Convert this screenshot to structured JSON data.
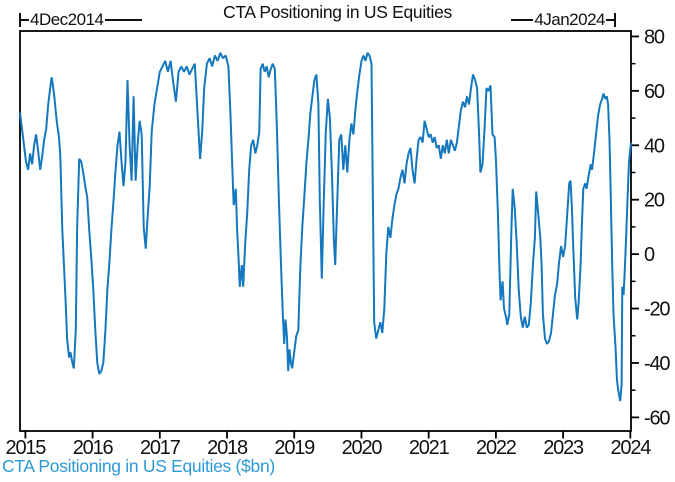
{
  "header": {
    "start_label": "4Dec2014",
    "end_label": "4Jan2024",
    "title": "CTA Positioning in US Equities"
  },
  "footer": {
    "legend_label": "CTA Positioning in US Equities ($bn)"
  },
  "colors": {
    "line": "#1578BE",
    "legend_text": "#2D9AD5",
    "axis": "#000000",
    "text": "#111111"
  },
  "chart_data": {
    "type": "line",
    "title": "CTA Positioning in US Equities",
    "series_name": "CTA Positioning in US Equities ($bn)",
    "xlabel": "",
    "ylabel": "",
    "grid": false,
    "legend_position": "bottom-left",
    "y_axis_side": "right",
    "xlim": [
      2014.92,
      2024.01
    ],
    "ylim": [
      -65,
      82
    ],
    "x_ticks": [
      2015,
      2016,
      2017,
      2018,
      2019,
      2020,
      2021,
      2022,
      2023,
      2024
    ],
    "y_ticks": [
      -60,
      -40,
      -20,
      0,
      20,
      40,
      60,
      80
    ],
    "y_minor_ticks": [
      -50,
      -30,
      -10,
      10,
      30,
      50,
      70
    ],
    "points": [
      [
        2014.92,
        52
      ],
      [
        2014.95,
        46
      ],
      [
        2014.98,
        40
      ],
      [
        2015.01,
        34
      ],
      [
        2015.04,
        31
      ],
      [
        2015.07,
        37
      ],
      [
        2015.1,
        33
      ],
      [
        2015.13,
        40
      ],
      [
        2015.16,
        44
      ],
      [
        2015.19,
        38
      ],
      [
        2015.22,
        31
      ],
      [
        2015.25,
        36
      ],
      [
        2015.28,
        42
      ],
      [
        2015.31,
        46
      ],
      [
        2015.34,
        55
      ],
      [
        2015.37,
        61
      ],
      [
        2015.39,
        65
      ],
      [
        2015.41,
        62
      ],
      [
        2015.43,
        58
      ],
      [
        2015.45,
        53
      ],
      [
        2015.47,
        48
      ],
      [
        2015.5,
        43
      ],
      [
        2015.52,
        36
      ],
      [
        2015.55,
        9
      ],
      [
        2015.57,
        -2
      ],
      [
        2015.6,
        -18
      ],
      [
        2015.62,
        -31
      ],
      [
        2015.65,
        -38
      ],
      [
        2015.67,
        -36
      ],
      [
        2015.7,
        -40
      ],
      [
        2015.72,
        -42
      ],
      [
        2015.75,
        -28
      ],
      [
        2015.77,
        9
      ],
      [
        2015.8,
        35
      ],
      [
        2015.83,
        34
      ],
      [
        2015.86,
        30
      ],
      [
        2015.89,
        25
      ],
      [
        2015.92,
        21
      ],
      [
        2015.95,
        9
      ],
      [
        2015.98,
        -1
      ],
      [
        2016.01,
        -13
      ],
      [
        2016.04,
        -28
      ],
      [
        2016.07,
        -40
      ],
      [
        2016.1,
        -44
      ],
      [
        2016.13,
        -43
      ],
      [
        2016.16,
        -40
      ],
      [
        2016.19,
        -28
      ],
      [
        2016.22,
        -13
      ],
      [
        2016.25,
        -3
      ],
      [
        2016.28,
        9
      ],
      [
        2016.31,
        19
      ],
      [
        2016.34,
        30
      ],
      [
        2016.37,
        40
      ],
      [
        2016.4,
        45
      ],
      [
        2016.43,
        34
      ],
      [
        2016.46,
        25
      ],
      [
        2016.49,
        34
      ],
      [
        2016.52,
        64
      ],
      [
        2016.55,
        40
      ],
      [
        2016.58,
        27
      ],
      [
        2016.61,
        58
      ],
      [
        2016.64,
        27
      ],
      [
        2016.67,
        40
      ],
      [
        2016.7,
        49
      ],
      [
        2016.73,
        44
      ],
      [
        2016.76,
        10
      ],
      [
        2016.79,
        2
      ],
      [
        2016.82,
        14
      ],
      [
        2016.85,
        25
      ],
      [
        2016.88,
        45
      ],
      [
        2016.92,
        55
      ],
      [
        2016.96,
        61
      ],
      [
        2017.0,
        67
      ],
      [
        2017.04,
        69
      ],
      [
        2017.08,
        71
      ],
      [
        2017.12,
        67
      ],
      [
        2017.16,
        71
      ],
      [
        2017.2,
        63
      ],
      [
        2017.24,
        56
      ],
      [
        2017.28,
        67
      ],
      [
        2017.32,
        69
      ],
      [
        2017.36,
        67
      ],
      [
        2017.4,
        69
      ],
      [
        2017.44,
        66
      ],
      [
        2017.48,
        68
      ],
      [
        2017.52,
        70
      ],
      [
        2017.56,
        52
      ],
      [
        2017.6,
        35
      ],
      [
        2017.63,
        45
      ],
      [
        2017.66,
        61
      ],
      [
        2017.7,
        70
      ],
      [
        2017.74,
        72
      ],
      [
        2017.78,
        69
      ],
      [
        2017.82,
        73
      ],
      [
        2017.86,
        71
      ],
      [
        2017.9,
        74
      ],
      [
        2017.94,
        72
      ],
      [
        2017.98,
        73
      ],
      [
        2018.02,
        69
      ],
      [
        2018.05,
        52
      ],
      [
        2018.08,
        31
      ],
      [
        2018.1,
        18
      ],
      [
        2018.13,
        24
      ],
      [
        2018.15,
        9
      ],
      [
        2018.17,
        -1
      ],
      [
        2018.19,
        -12
      ],
      [
        2018.22,
        -4
      ],
      [
        2018.24,
        -12
      ],
      [
        2018.27,
        4
      ],
      [
        2018.3,
        15
      ],
      [
        2018.33,
        31
      ],
      [
        2018.36,
        40
      ],
      [
        2018.39,
        42
      ],
      [
        2018.42,
        37
      ],
      [
        2018.45,
        40
      ],
      [
        2018.48,
        45
      ],
      [
        2018.5,
        68
      ],
      [
        2018.53,
        70
      ],
      [
        2018.56,
        67
      ],
      [
        2018.59,
        69
      ],
      [
        2018.62,
        65
      ],
      [
        2018.65,
        68
      ],
      [
        2018.68,
        70
      ],
      [
        2018.71,
        68
      ],
      [
        2018.73,
        55
      ],
      [
        2018.75,
        40
      ],
      [
        2018.77,
        21
      ],
      [
        2018.79,
        6
      ],
      [
        2018.81,
        -9
      ],
      [
        2018.83,
        -22
      ],
      [
        2018.85,
        -33
      ],
      [
        2018.87,
        -24
      ],
      [
        2018.89,
        -30
      ],
      [
        2018.91,
        -43
      ],
      [
        2018.93,
        -35
      ],
      [
        2018.95,
        -40
      ],
      [
        2018.97,
        -42
      ],
      [
        2019.0,
        -36
      ],
      [
        2019.03,
        -30
      ],
      [
        2019.06,
        -28
      ],
      [
        2019.09,
        -5
      ],
      [
        2019.12,
        10
      ],
      [
        2019.15,
        21
      ],
      [
        2019.18,
        33
      ],
      [
        2019.21,
        42
      ],
      [
        2019.24,
        52
      ],
      [
        2019.27,
        58
      ],
      [
        2019.3,
        64
      ],
      [
        2019.33,
        66
      ],
      [
        2019.36,
        55
      ],
      [
        2019.38,
        20
      ],
      [
        2019.41,
        -9
      ],
      [
        2019.44,
        20
      ],
      [
        2019.47,
        45
      ],
      [
        2019.5,
        57
      ],
      [
        2019.53,
        50
      ],
      [
        2019.56,
        30
      ],
      [
        2019.59,
        5
      ],
      [
        2019.61,
        -4
      ],
      [
        2019.64,
        20
      ],
      [
        2019.67,
        42
      ],
      [
        2019.7,
        44
      ],
      [
        2019.73,
        31
      ],
      [
        2019.76,
        40
      ],
      [
        2019.79,
        30
      ],
      [
        2019.82,
        42
      ],
      [
        2019.85,
        48
      ],
      [
        2019.88,
        44
      ],
      [
        2019.91,
        53
      ],
      [
        2019.94,
        60
      ],
      [
        2019.97,
        66
      ],
      [
        2020.0,
        71
      ],
      [
        2020.03,
        73
      ],
      [
        2020.06,
        71
      ],
      [
        2020.09,
        74
      ],
      [
        2020.12,
        73
      ],
      [
        2020.15,
        70
      ],
      [
        2020.17,
        20
      ],
      [
        2020.19,
        -25
      ],
      [
        2020.22,
        -31
      ],
      [
        2020.25,
        -28
      ],
      [
        2020.28,
        -25
      ],
      [
        2020.31,
        -29
      ],
      [
        2020.34,
        -20
      ],
      [
        2020.37,
        0
      ],
      [
        2020.4,
        10
      ],
      [
        2020.43,
        6
      ],
      [
        2020.46,
        13
      ],
      [
        2020.49,
        18
      ],
      [
        2020.52,
        22
      ],
      [
        2020.55,
        24
      ],
      [
        2020.58,
        28
      ],
      [
        2020.61,
        31
      ],
      [
        2020.64,
        26
      ],
      [
        2020.67,
        33
      ],
      [
        2020.7,
        37
      ],
      [
        2020.73,
        39
      ],
      [
        2020.76,
        31
      ],
      [
        2020.79,
        26
      ],
      [
        2020.82,
        35
      ],
      [
        2020.85,
        42
      ],
      [
        2020.88,
        43
      ],
      [
        2020.91,
        41
      ],
      [
        2020.94,
        49
      ],
      [
        2020.97,
        46
      ],
      [
        2021.0,
        43
      ],
      [
        2021.03,
        44
      ],
      [
        2021.06,
        41
      ],
      [
        2021.09,
        43
      ],
      [
        2021.12,
        39
      ],
      [
        2021.15,
        40
      ],
      [
        2021.18,
        35
      ],
      [
        2021.21,
        40
      ],
      [
        2021.24,
        37
      ],
      [
        2021.27,
        42
      ],
      [
        2021.3,
        37
      ],
      [
        2021.33,
        42
      ],
      [
        2021.36,
        40
      ],
      [
        2021.39,
        38
      ],
      [
        2021.42,
        41
      ],
      [
        2021.45,
        47
      ],
      [
        2021.48,
        53
      ],
      [
        2021.51,
        56
      ],
      [
        2021.54,
        54
      ],
      [
        2021.57,
        58
      ],
      [
        2021.6,
        55
      ],
      [
        2021.63,
        61
      ],
      [
        2021.66,
        66
      ],
      [
        2021.69,
        64
      ],
      [
        2021.72,
        61
      ],
      [
        2021.75,
        44
      ],
      [
        2021.77,
        30
      ],
      [
        2021.8,
        33
      ],
      [
        2021.83,
        46
      ],
      [
        2021.86,
        61
      ],
      [
        2021.89,
        60
      ],
      [
        2021.92,
        62
      ],
      [
        2021.95,
        44
      ],
      [
        2021.98,
        43
      ],
      [
        2022.0,
        35
      ],
      [
        2022.03,
        15
      ],
      [
        2022.05,
        -4
      ],
      [
        2022.07,
        -17
      ],
      [
        2022.1,
        -10
      ],
      [
        2022.12,
        -20
      ],
      [
        2022.15,
        -23
      ],
      [
        2022.17,
        -26
      ],
      [
        2022.2,
        -22
      ],
      [
        2022.23,
        9
      ],
      [
        2022.25,
        24
      ],
      [
        2022.28,
        17
      ],
      [
        2022.31,
        4
      ],
      [
        2022.34,
        -13
      ],
      [
        2022.37,
        -23
      ],
      [
        2022.4,
        -27
      ],
      [
        2022.43,
        -23
      ],
      [
        2022.46,
        -27
      ],
      [
        2022.49,
        -26
      ],
      [
        2022.52,
        -18
      ],
      [
        2022.55,
        -4
      ],
      [
        2022.58,
        6
      ],
      [
        2022.6,
        23
      ],
      [
        2022.63,
        15
      ],
      [
        2022.66,
        6
      ],
      [
        2022.68,
        -4
      ],
      [
        2022.7,
        -22
      ],
      [
        2022.73,
        -31
      ],
      [
        2022.76,
        -33
      ],
      [
        2022.79,
        -32
      ],
      [
        2022.82,
        -29
      ],
      [
        2022.85,
        -22
      ],
      [
        2022.88,
        -15
      ],
      [
        2022.91,
        -11
      ],
      [
        2022.94,
        -3
      ],
      [
        2022.97,
        3
      ],
      [
        2023.0,
        -1
      ],
      [
        2023.03,
        3
      ],
      [
        2023.06,
        14
      ],
      [
        2023.09,
        26
      ],
      [
        2023.11,
        27
      ],
      [
        2023.13,
        18
      ],
      [
        2023.15,
        3
      ],
      [
        2023.18,
        -16
      ],
      [
        2023.21,
        -24
      ],
      [
        2023.23,
        -18
      ],
      [
        2023.26,
        -4
      ],
      [
        2023.28,
        11
      ],
      [
        2023.3,
        24
      ],
      [
        2023.33,
        26
      ],
      [
        2023.35,
        24
      ],
      [
        2023.38,
        29
      ],
      [
        2023.41,
        33
      ],
      [
        2023.43,
        31
      ],
      [
        2023.46,
        37
      ],
      [
        2023.49,
        44
      ],
      [
        2023.52,
        51
      ],
      [
        2023.55,
        55
      ],
      [
        2023.58,
        57
      ],
      [
        2023.6,
        59
      ],
      [
        2023.63,
        57
      ],
      [
        2023.65,
        58
      ],
      [
        2023.67,
        55
      ],
      [
        2023.69,
        42
      ],
      [
        2023.71,
        21
      ],
      [
        2023.73,
        -4
      ],
      [
        2023.75,
        -22
      ],
      [
        2023.78,
        -34
      ],
      [
        2023.8,
        -46
      ],
      [
        2023.82,
        -50
      ],
      [
        2023.85,
        -54
      ],
      [
        2023.87,
        -48
      ],
      [
        2023.88,
        -12
      ],
      [
        2023.9,
        -15
      ],
      [
        2023.92,
        -4
      ],
      [
        2023.94,
        8
      ],
      [
        2023.96,
        21
      ],
      [
        2023.98,
        34
      ],
      [
        2024.01,
        41
      ]
    ]
  }
}
